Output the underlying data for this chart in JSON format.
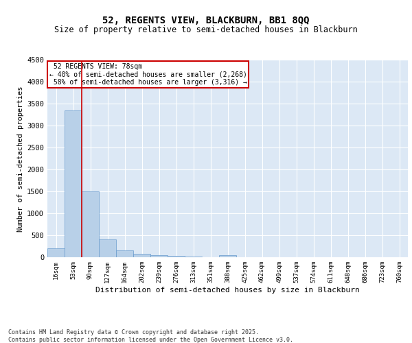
{
  "title1": "52, REGENTS VIEW, BLACKBURN, BB1 8QQ",
  "title2": "Size of property relative to semi-detached houses in Blackburn",
  "xlabel": "Distribution of semi-detached houses by size in Blackburn",
  "ylabel": "Number of semi-detached properties",
  "footnote": "Contains HM Land Registry data © Crown copyright and database right 2025.\nContains public sector information licensed under the Open Government Licence v3.0.",
  "bin_labels": [
    "16sqm",
    "53sqm",
    "90sqm",
    "127sqm",
    "164sqm",
    "202sqm",
    "239sqm",
    "276sqm",
    "313sqm",
    "351sqm",
    "388sqm",
    "425sqm",
    "462sqm",
    "499sqm",
    "537sqm",
    "574sqm",
    "611sqm",
    "648sqm",
    "686sqm",
    "723sqm",
    "760sqm"
  ],
  "bar_values": [
    205,
    3350,
    1500,
    400,
    150,
    75,
    50,
    30,
    20,
    5,
    50,
    0,
    0,
    0,
    0,
    0,
    0,
    0,
    0,
    0,
    0
  ],
  "bar_color": "#b8d0e8",
  "bar_edge_color": "#6699cc",
  "vline_color": "#cc0000",
  "vline_x": 1.5,
  "annotation_box_color": "#ffffff",
  "annotation_box_edge": "#cc0000",
  "subject_label": "52 REGENTS VIEW: 78sqm",
  "pct_smaller": "40%",
  "count_smaller": "2,268",
  "pct_larger": "58%",
  "count_larger": "3,316",
  "ylim": [
    0,
    4500
  ],
  "yticks": [
    0,
    500,
    1000,
    1500,
    2000,
    2500,
    3000,
    3500,
    4000,
    4500
  ],
  "fig_bg_color": "#ffffff",
  "plot_bg_color": "#dce8f5",
  "grid_color": "#ffffff",
  "title_fontsize": 10,
  "subtitle_fontsize": 8.5
}
